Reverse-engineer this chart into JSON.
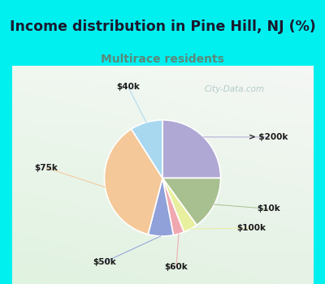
{
  "title": "Income distribution in Pine Hill, NJ (%)",
  "subtitle": "Multirace residents",
  "watermark": "City-Data.com",
  "slices": [
    {
      "label": "> $200k",
      "value": 25,
      "color": "#b0a8d4"
    },
    {
      "label": "$10k",
      "value": 15,
      "color": "#a8c090"
    },
    {
      "label": "$100k",
      "value": 4,
      "color": "#e8f0a0"
    },
    {
      "label": "$60k",
      "value": 3,
      "color": "#f0a8b0"
    },
    {
      "label": "$50k",
      "value": 7,
      "color": "#90a0d8"
    },
    {
      "label": "$75k",
      "value": 37,
      "color": "#f4c898"
    },
    {
      "label": "$40k",
      "value": 9,
      "color": "#a8d8f0"
    }
  ],
  "bg_cyan": "#00f0f0",
  "bg_chart_tl": "#e8f8f0",
  "bg_chart_br": "#d8f0e8",
  "title_color": "#1a1a2e",
  "subtitle_color": "#5a8a7a",
  "label_color": "#1a1a1a",
  "watermark_color": "#a8c4c4",
  "title_fontsize": 12.5,
  "subtitle_fontsize": 10
}
